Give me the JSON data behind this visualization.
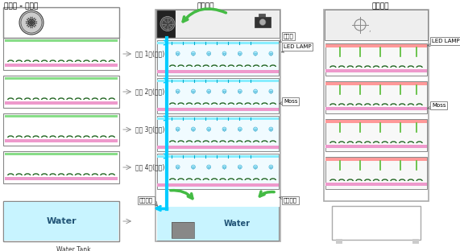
{
  "title_left": "【조립 - 정면】",
  "title_mid": "【측면】",
  "title_right": "【우면】",
  "bg_color": "#ffffff",
  "row_labels": [
    "이끼 1열(수평)",
    "이끼 2열(수평)",
    "이끼 3열(수평)",
    "이끼 4열(수평)"
  ],
  "water_label": "Water",
  "water_tank_label": "Water Tank",
  "label_물공급": "물공급",
  "label_LED": "LED LAMP",
  "label_Moss": "Moss",
  "label_기름": "기름이동",
  "label_펌프": "수중펌프",
  "label_LED_right": "LED LAMP",
  "label_Moss_right": "Moss"
}
